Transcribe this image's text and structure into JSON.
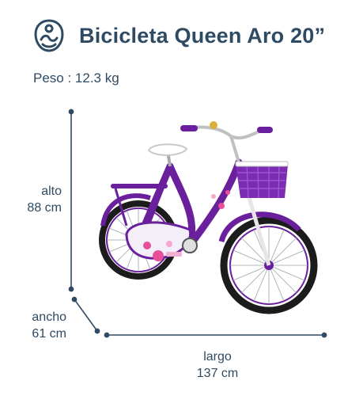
{
  "header": {
    "logo_icon": "baby-bike-logo-icon",
    "title": "Bicicleta Queen Aro 20”"
  },
  "specs": {
    "weight": "Peso : 12.3 kg"
  },
  "dimensions": {
    "alto": {
      "label": "alto",
      "value": "88 cm"
    },
    "ancho": {
      "label": "ancho",
      "value": "61 cm"
    },
    "largo": {
      "label": "largo",
      "value": "137 cm"
    }
  },
  "product": {
    "image_icon": "purple-bicycle-illustration",
    "colors": {
      "frame": "#6a1f9c",
      "frame_light": "#8a3cc0",
      "accent_pink": "#e84f9a",
      "line": "#2f4a63"
    }
  }
}
